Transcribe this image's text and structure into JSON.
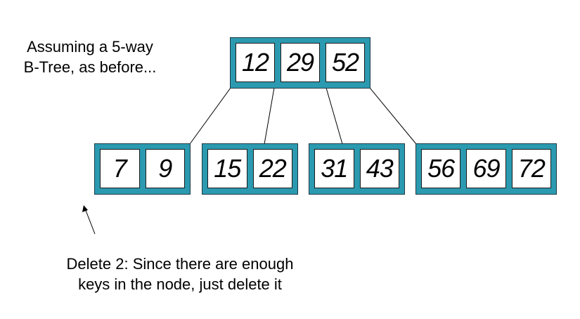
{
  "caption_top": {
    "line1": "Assuming a 5-way",
    "line2": "B-Tree, as before..."
  },
  "caption_bottom": {
    "line1": "Delete 2:  Since there are enough",
    "line2": "keys in the node, just delete it"
  },
  "tree": {
    "root": {
      "keys": [
        "12",
        "29",
        "52"
      ]
    },
    "children": [
      {
        "keys": [
          "7",
          "9"
        ]
      },
      {
        "keys": [
          "15",
          "22"
        ]
      },
      {
        "keys": [
          "31",
          "43"
        ]
      },
      {
        "keys": [
          "56",
          "69",
          "72"
        ]
      }
    ]
  },
  "colors": {
    "node_fill": "#2b9ab0",
    "key_fill": "#ffffff",
    "edge": "#000000"
  }
}
